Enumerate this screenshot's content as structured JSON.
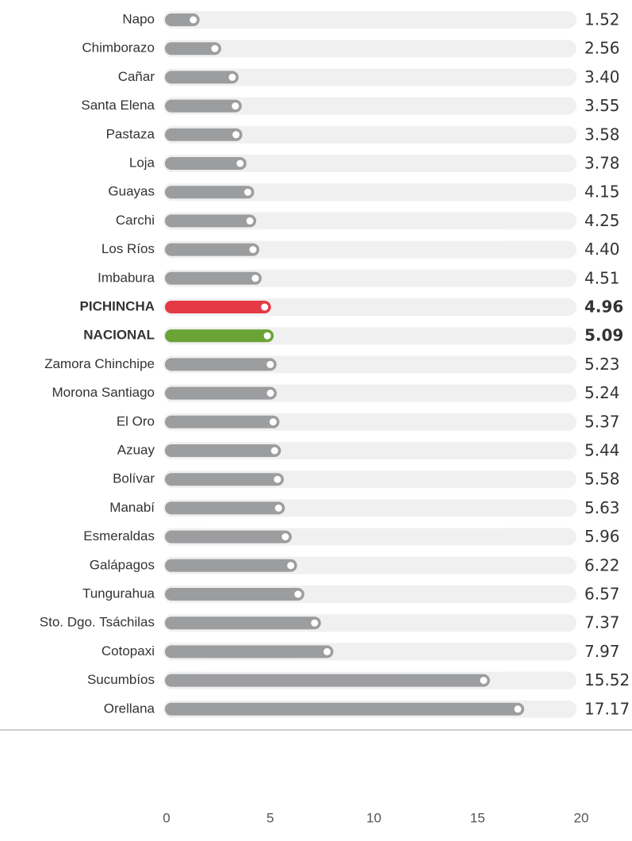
{
  "chart_data": {
    "type": "bar",
    "orientation": "horizontal",
    "categories": [
      "Napo",
      "Chimborazo",
      "Cañar",
      "Santa Elena",
      "Pastaza",
      "Loja",
      "Guayas",
      "Carchi",
      "Los Ríos",
      "Imbabura",
      "PICHINCHA",
      "NACIONAL",
      "Zamora Chinchipe",
      "Morona Santiago",
      "El Oro",
      "Azuay",
      "Bolívar",
      "Manabí",
      "Esmeraldas",
      "Galápagos",
      "Tungurahua",
      "Sto. Dgo. Tsáchilas",
      "Cotopaxi",
      "Sucumbíos",
      "Orellana"
    ],
    "values": [
      1.52,
      2.56,
      3.4,
      3.55,
      3.58,
      3.78,
      4.15,
      4.25,
      4.4,
      4.51,
      4.96,
      5.09,
      5.23,
      5.24,
      5.37,
      5.44,
      5.58,
      5.63,
      5.96,
      6.22,
      6.57,
      7.37,
      7.97,
      15.52,
      17.17
    ],
    "value_labels": [
      "1.52",
      "2.56",
      "3.40",
      "3.55",
      "3.58",
      "3.78",
      "4.15",
      "4.25",
      "4.40",
      "4.51",
      "4.96",
      "5.09",
      "5.23",
      "5.24",
      "5.37",
      "5.44",
      "5.58",
      "5.63",
      "5.96",
      "6.22",
      "6.57",
      "7.37",
      "7.97",
      "15.52",
      "17.17"
    ],
    "color": "#9c9d9f",
    "colors": [
      "#9c9d9f",
      "#9c9d9f",
      "#9c9d9f",
      "#9c9d9f",
      "#9c9d9f",
      "#9c9d9f",
      "#9c9d9f",
      "#9c9d9f",
      "#9c9d9f",
      "#9c9d9f",
      "#e63946",
      "#6aa336",
      "#9c9d9f",
      "#9c9d9f",
      "#9c9d9f",
      "#9c9d9f",
      "#9c9d9f",
      "#9c9d9f",
      "#9c9d9f",
      "#9c9d9f",
      "#9c9d9f",
      "#9c9d9f",
      "#9c9d9f",
      "#9c9d9f",
      "#9c9d9f"
    ],
    "xlim": [
      0,
      20
    ],
    "xticks": [
      0,
      5,
      10,
      15,
      20
    ],
    "grid": false
  }
}
